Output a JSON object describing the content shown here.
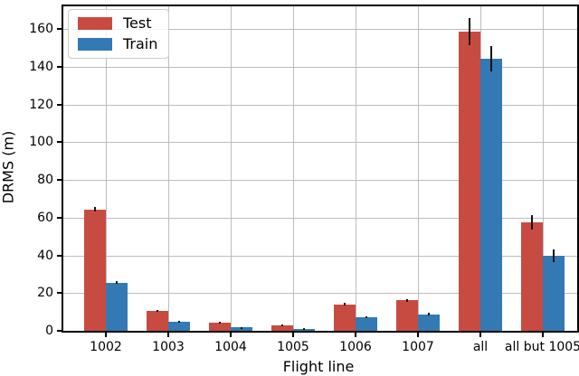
{
  "figure": {
    "title": ""
  },
  "chart_data": {
    "type": "bar",
    "title": "",
    "xlabel": "Flight line",
    "ylabel": "DRMS (m)",
    "categories": [
      "1002",
      "1003",
      "1004",
      "1005",
      "1006",
      "1007",
      "all",
      "all but 1005"
    ],
    "series": [
      {
        "name": "Test",
        "color": "#c84b42",
        "values": [
          64.3,
          10.6,
          4.2,
          3.0,
          14.0,
          16.1,
          158.5,
          57.5
        ],
        "errors": [
          1.2,
          0.6,
          0.5,
          0.4,
          0.7,
          0.8,
          7.3,
          3.9
        ]
      },
      {
        "name": "Train",
        "color": "#3379b4",
        "values": [
          25.6,
          4.9,
          1.7,
          1.1,
          7.0,
          8.8,
          144.3,
          39.7
        ],
        "errors": [
          0.8,
          0.4,
          0.3,
          0.2,
          0.5,
          0.6,
          6.8,
          3.4
        ]
      }
    ],
    "ylim": [
      0,
      172
    ],
    "yticks": [
      0,
      20,
      40,
      60,
      80,
      100,
      120,
      140,
      160
    ],
    "grid": true,
    "legend_position": "upper left",
    "error_bars": true,
    "colors": {
      "grid": "#bdbdbd",
      "spine": "#000000",
      "errorbar": "#111111",
      "background": "#ffffff"
    }
  }
}
